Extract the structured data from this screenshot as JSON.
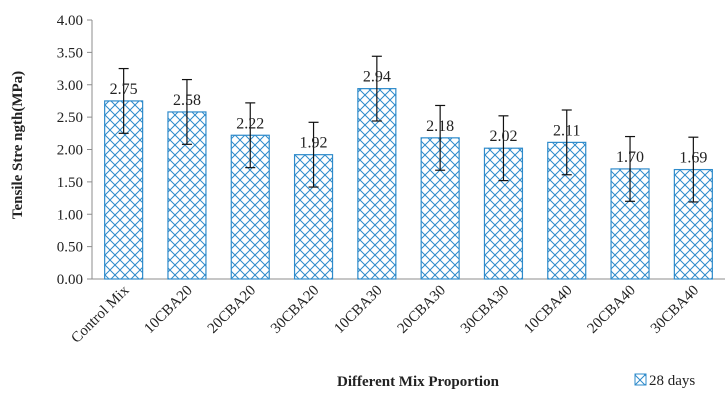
{
  "chart_data": {
    "type": "bar",
    "title": "",
    "xlabel": "Different Mix Proportion",
    "ylabel": "Tensile Stre ngth(MPa)",
    "ylim": [
      0,
      4
    ],
    "yticks": [
      "0.00",
      "0.50",
      "1.00",
      "1.50",
      "2.00",
      "2.50",
      "3.00",
      "3.50",
      "4.00"
    ],
    "grid": false,
    "legend_position": "bottom-right",
    "categories": [
      "Control Mix",
      "10CBA20",
      "20CBA20",
      "30CBA20",
      "10CBA30",
      "20CBA30",
      "30CBA30",
      "10CBA40",
      "20CBA40",
      "30CBA40"
    ],
    "series": [
      {
        "name": "28 days",
        "values": [
          2.75,
          2.58,
          2.22,
          1.92,
          2.94,
          2.18,
          2.02,
          2.11,
          1.7,
          1.69
        ],
        "labels": [
          "2.75",
          "2.58",
          "2.22",
          "1.92",
          "2.94",
          "2.18",
          "2.02",
          "2.11",
          "1.70",
          "1.69"
        ],
        "error": 0.5,
        "color": "#2E8BCB",
        "pattern": "diagonal crosshatch"
      }
    ]
  }
}
